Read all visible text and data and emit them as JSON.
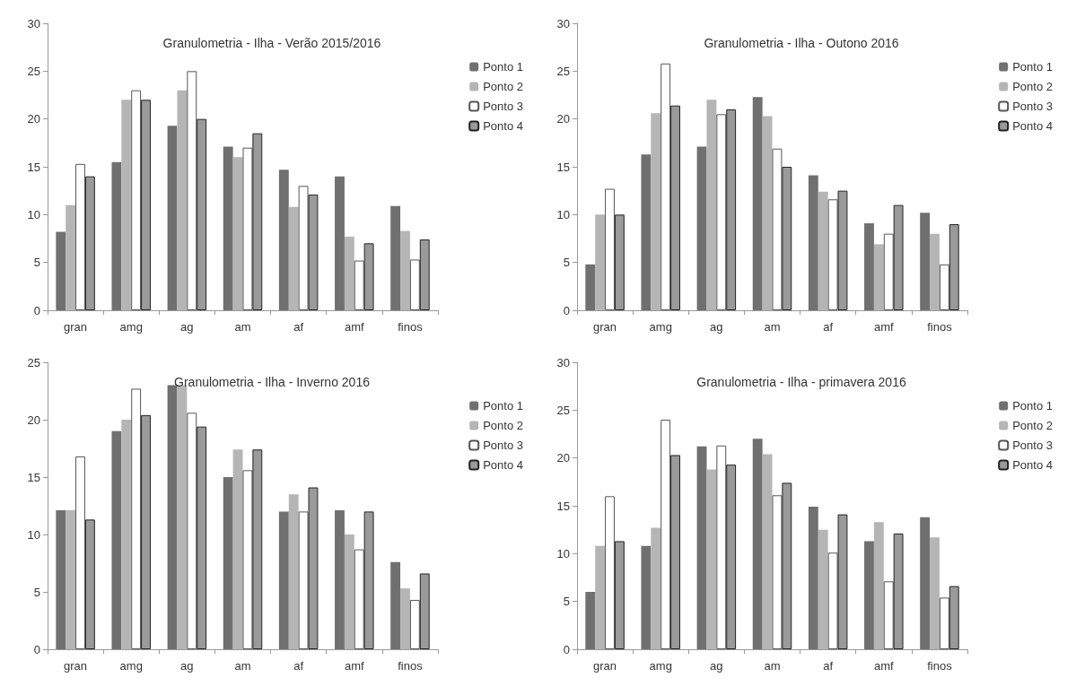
{
  "chart_data": [
    {
      "type": "bar",
      "title": "Granulometria - Ilha - Verão 2015/2016",
      "categories": [
        "gran",
        "amg",
        "ag",
        "am",
        "af",
        "amf",
        "finos"
      ],
      "ylim": [
        0,
        30
      ],
      "yticks": [
        0,
        5,
        10,
        15,
        20,
        25,
        30
      ],
      "grid": false,
      "legend": "right",
      "series": [
        {
          "name": "Ponto 1",
          "color": "#707070",
          "values": [
            8.2,
            15.5,
            19.3,
            17.1,
            14.7,
            14,
            10.9
          ]
        },
        {
          "name": "Ponto 2",
          "color": "#b5b5b5",
          "values": [
            11,
            22,
            23,
            16,
            10.8,
            7.7,
            8.3
          ]
        },
        {
          "name": "Ponto 3",
          "color": "#ffffff",
          "values": [
            15.3,
            23,
            25,
            17,
            13,
            5.2,
            5.3
          ]
        },
        {
          "name": "Ponto 4",
          "color": "#9a9a9a",
          "values": [
            14,
            22,
            20,
            18.5,
            12.1,
            7,
            7.4
          ]
        }
      ]
    },
    {
      "type": "bar",
      "title": "Granulometria - Ilha - Outono 2016",
      "categories": [
        "gran",
        "amg",
        "ag",
        "am",
        "af",
        "amf",
        "finos"
      ],
      "ylim": [
        0,
        30
      ],
      "yticks": [
        0,
        5,
        10,
        15,
        20,
        25,
        30
      ],
      "grid": false,
      "legend": "right",
      "series": [
        {
          "name": "Ponto 1",
          "color": "#707070",
          "values": [
            4.8,
            16.3,
            17.1,
            22.3,
            14.1,
            9.1,
            10.2
          ]
        },
        {
          "name": "Ponto 2",
          "color": "#b5b5b5",
          "values": [
            10,
            20.6,
            22,
            20.3,
            12.4,
            6.9,
            8
          ]
        },
        {
          "name": "Ponto 3",
          "color": "#ffffff",
          "values": [
            12.7,
            25.8,
            20.5,
            16.9,
            11.6,
            8,
            4.8
          ]
        },
        {
          "name": "Ponto 4",
          "color": "#9a9a9a",
          "values": [
            10,
            21.4,
            21,
            15,
            12.5,
            11,
            9
          ]
        }
      ]
    },
    {
      "type": "bar",
      "title": "Granulometria - Ilha - Inverno 2016",
      "categories": [
        "gran",
        "amg",
        "ag",
        "am",
        "af",
        "amf",
        "finos"
      ],
      "ylim": [
        0,
        25
      ],
      "yticks": [
        0,
        5,
        10,
        15,
        20,
        25
      ],
      "grid": false,
      "legend": "right",
      "series": [
        {
          "name": "Ponto 1",
          "color": "#707070",
          "values": [
            12.1,
            19,
            23,
            15,
            12,
            12.1,
            7.6
          ]
        },
        {
          "name": "Ponto 2",
          "color": "#b5b5b5",
          "values": [
            12.1,
            20,
            23,
            17.4,
            13.5,
            10,
            5.3
          ]
        },
        {
          "name": "Ponto 3",
          "color": "#ffffff",
          "values": [
            16.8,
            22.7,
            20.6,
            15.6,
            12,
            8.7,
            4.3
          ]
        },
        {
          "name": "Ponto 4",
          "color": "#9a9a9a",
          "values": [
            11.3,
            20.4,
            19.4,
            17.4,
            14.1,
            12,
            6.6
          ]
        }
      ]
    },
    {
      "type": "bar",
      "title": "Granulometria - Ilha - primavera 2016",
      "categories": [
        "gran",
        "amg",
        "ag",
        "am",
        "af",
        "amf",
        "finos"
      ],
      "ylim": [
        0,
        30
      ],
      "yticks": [
        0,
        5,
        10,
        15,
        20,
        25,
        30
      ],
      "grid": false,
      "legend": "right",
      "series": [
        {
          "name": "Ponto 1",
          "color": "#707070",
          "values": [
            6,
            10.8,
            21.2,
            22,
            14.9,
            11.3,
            13.8
          ]
        },
        {
          "name": "Ponto 2",
          "color": "#b5b5b5",
          "values": [
            10.8,
            12.7,
            18.8,
            20.4,
            12.5,
            13.3,
            11.7
          ]
        },
        {
          "name": "Ponto 3",
          "color": "#ffffff",
          "values": [
            16,
            24,
            21.3,
            16.1,
            10.1,
            7.1,
            5.4
          ]
        },
        {
          "name": "Ponto 4",
          "color": "#9a9a9a",
          "values": [
            11.3,
            20.3,
            19.3,
            17.4,
            14.1,
            12.1,
            6.6
          ]
        }
      ]
    }
  ]
}
